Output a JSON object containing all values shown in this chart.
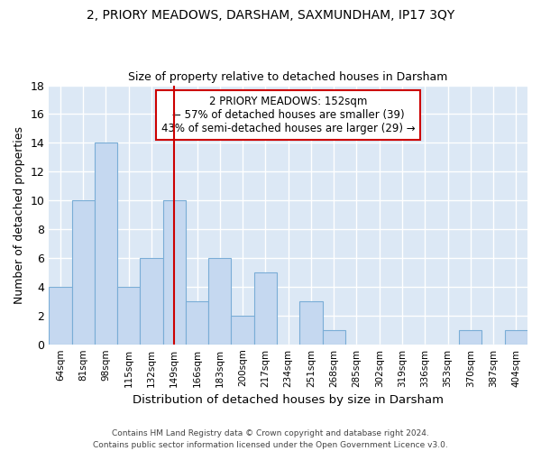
{
  "title1": "2, PRIORY MEADOWS, DARSHAM, SAXMUNDHAM, IP17 3QY",
  "title2": "Size of property relative to detached houses in Darsham",
  "xlabel": "Distribution of detached houses by size in Darsham",
  "ylabel": "Number of detached properties",
  "categories": [
    "64sqm",
    "81sqm",
    "98sqm",
    "115sqm",
    "132sqm",
    "149sqm",
    "166sqm",
    "183sqm",
    "200sqm",
    "217sqm",
    "234sqm",
    "251sqm",
    "268sqm",
    "285sqm",
    "302sqm",
    "319sqm",
    "336sqm",
    "353sqm",
    "370sqm",
    "387sqm",
    "404sqm"
  ],
  "values": [
    4,
    10,
    14,
    4,
    6,
    10,
    3,
    6,
    2,
    5,
    0,
    3,
    1,
    0,
    0,
    0,
    0,
    0,
    1,
    0,
    1
  ],
  "bar_color": "#c5d8f0",
  "bar_edge_color": "#7aadd6",
  "vline_index": 5,
  "vline_color": "#cc0000",
  "annotation_text": "2 PRIORY MEADOWS: 152sqm\n← 57% of detached houses are smaller (39)\n43% of semi-detached houses are larger (29) →",
  "annotation_box_color": "white",
  "annotation_box_edge": "#cc0000",
  "ylim": [
    0,
    18
  ],
  "yticks": [
    0,
    2,
    4,
    6,
    8,
    10,
    12,
    14,
    16,
    18
  ],
  "footer": "Contains HM Land Registry data © Crown copyright and database right 2024.\nContains public sector information licensed under the Open Government Licence v3.0.",
  "bg_color": "#ffffff",
  "plot_bg": "#dce8f5",
  "grid_color": "#ffffff"
}
